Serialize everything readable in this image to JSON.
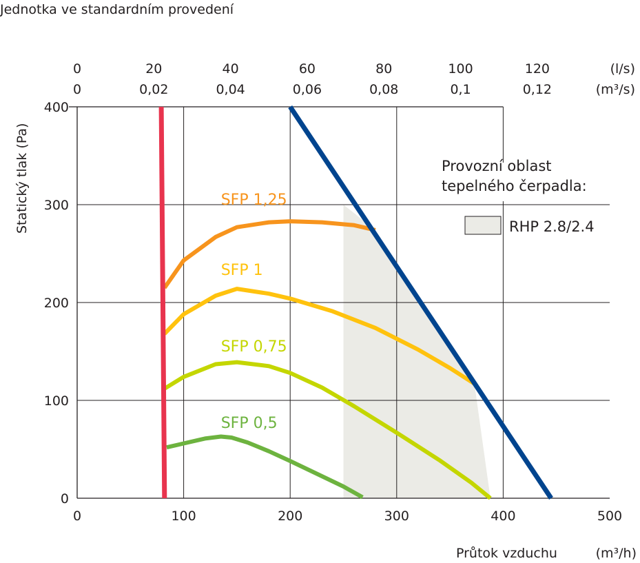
{
  "header": {
    "title": "Jednotka ve standardním provedení"
  },
  "chart_data": {
    "type": "line",
    "title": "Jednotka ve standardním provedení",
    "xlabel": "Průtok vzduchu",
    "xunit": "(m³/h)",
    "ylabel": "Statický tlak (Pa)",
    "xlim": [
      0,
      500
    ],
    "ylim": [
      0,
      400
    ],
    "x_ticks": [
      "0",
      "100",
      "200",
      "300",
      "400",
      "500"
    ],
    "y_ticks": [
      "0",
      "100",
      "200",
      "300",
      "400"
    ],
    "top_axis_ls": {
      "unit": "(l/s)",
      "ticks": [
        {
          "label": "0",
          "x": 0
        },
        {
          "label": "20",
          "x": 72
        },
        {
          "label": "40",
          "x": 144
        },
        {
          "label": "60",
          "x": 216
        },
        {
          "label": "80",
          "x": 288
        },
        {
          "label": "100",
          "x": 360
        },
        {
          "label": "120",
          "x": 432
        }
      ]
    },
    "top_axis_m3s": {
      "unit": "(m³/s)",
      "ticks": [
        {
          "label": "0",
          "x": 0
        },
        {
          "label": "0,02",
          "x": 72
        },
        {
          "label": "0,04",
          "x": 144
        },
        {
          "label": "0,06",
          "x": 216
        },
        {
          "label": "0,08",
          "x": 288
        },
        {
          "label": "0,1",
          "x": 360
        },
        {
          "label": "0,12",
          "x": 432
        }
      ]
    },
    "grid": true,
    "legend": {
      "title_lines": [
        "Provozní oblast",
        "tepelného čerpadla:"
      ],
      "entry": "RHP 2.8/2.4",
      "color": "#ebebe6"
    },
    "operating_area": {
      "name": "RHP 2.8/2.4",
      "color": "#ebebe6",
      "points": [
        [
          250,
          300
        ],
        [
          280,
          274
        ],
        [
          373,
          117
        ],
        [
          388,
          0
        ],
        [
          250,
          0
        ]
      ]
    },
    "series": [
      {
        "name": "SFP 1,25",
        "color": "#f7941d",
        "label_at": [
          135,
          300
        ],
        "points": [
          [
            82,
            215
          ],
          [
            100,
            243
          ],
          [
            130,
            267
          ],
          [
            150,
            277
          ],
          [
            180,
            282
          ],
          [
            200,
            283
          ],
          [
            230,
            282
          ],
          [
            260,
            279
          ],
          [
            280,
            274
          ]
        ]
      },
      {
        "name": "SFP 1",
        "color": "#ffc20e",
        "label_at": [
          135,
          228
        ],
        "points": [
          [
            82,
            168
          ],
          [
            100,
            188
          ],
          [
            130,
            207
          ],
          [
            150,
            214
          ],
          [
            180,
            209
          ],
          [
            200,
            204
          ],
          [
            240,
            191
          ],
          [
            280,
            174
          ],
          [
            320,
            152
          ],
          [
            350,
            133
          ],
          [
            373,
            117
          ]
        ]
      },
      {
        "name": "SFP 0,75",
        "color": "#c4d600",
        "label_at": [
          135,
          150
        ],
        "points": [
          [
            82,
            112
          ],
          [
            100,
            124
          ],
          [
            130,
            137
          ],
          [
            150,
            139
          ],
          [
            180,
            135
          ],
          [
            200,
            128
          ],
          [
            230,
            113
          ],
          [
            260,
            94
          ],
          [
            300,
            67
          ],
          [
            340,
            39
          ],
          [
            370,
            16
          ],
          [
            388,
            0
          ]
        ]
      },
      {
        "name": "SFP 0,5",
        "color": "#6db33f",
        "label_at": [
          135,
          72
        ],
        "points": [
          [
            84,
            52
          ],
          [
            100,
            56
          ],
          [
            120,
            61
          ],
          [
            135,
            63
          ],
          [
            145,
            62
          ],
          [
            160,
            57
          ],
          [
            180,
            48
          ],
          [
            200,
            38
          ],
          [
            225,
            25
          ],
          [
            250,
            12
          ],
          [
            268,
            1
          ]
        ]
      },
      {
        "name": "",
        "color": "#e8344e",
        "label_at": null,
        "points": [
          [
            79,
            400
          ],
          [
            82,
            0
          ]
        ]
      },
      {
        "name": "",
        "color": "#00448e",
        "label_at": null,
        "points": [
          [
            200,
            400
          ],
          [
            445,
            0
          ]
        ]
      }
    ]
  }
}
